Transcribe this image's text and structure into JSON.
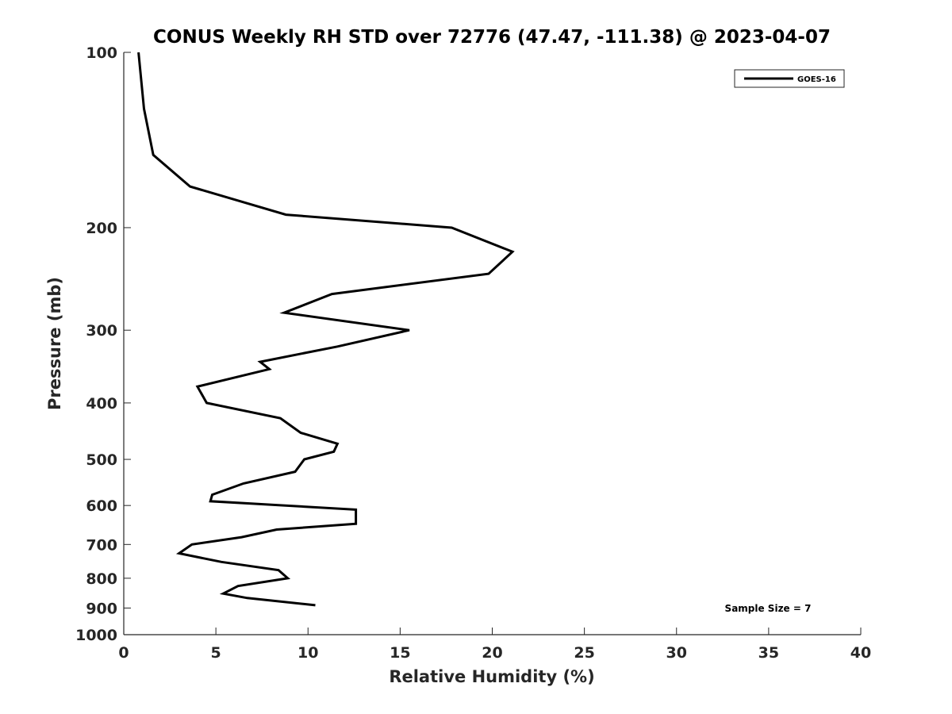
{
  "chart_data": {
    "type": "line",
    "title": "CONUS Weekly RH STD over 72776 (47.47, -111.38) @ 2023-04-07",
    "xlabel": "Relative Humidity (%)",
    "ylabel": "Pressure (mb)",
    "xlim": [
      0,
      40
    ],
    "ylim": [
      100,
      1000
    ],
    "yscale": "log",
    "y_reversed": true,
    "xticks": [
      0,
      5,
      10,
      15,
      20,
      25,
      30,
      35,
      40
    ],
    "xtick_labels": [
      "0",
      "5",
      "10",
      "15",
      "20",
      "25",
      "30",
      "35",
      "40"
    ],
    "yticks": [
      100,
      200,
      300,
      400,
      500,
      600,
      700,
      800,
      900,
      1000
    ],
    "ytick_labels": [
      "100",
      "200",
      "300",
      "400",
      "500",
      "600",
      "700",
      "800",
      "900",
      "1000"
    ],
    "grid": false,
    "legend_position": "top-right",
    "series": [
      {
        "name": "GOES-16",
        "color": "#000000",
        "x": [
          0.8,
          1.1,
          1.6,
          3.6,
          8.8,
          17.8,
          21.1,
          19.8,
          11.3,
          8.7,
          15.5,
          11.6,
          7.4,
          7.9,
          4.0,
          4.5,
          8.5,
          9.6,
          11.6,
          11.4,
          9.8,
          9.3,
          6.5,
          4.8,
          4.7,
          12.6,
          12.6,
          8.3,
          6.4,
          3.7,
          3.0,
          5.3,
          8.4,
          8.9,
          6.2,
          5.4,
          6.7,
          10.4
        ],
        "y": [
          100,
          125,
          150,
          170,
          190,
          200,
          220,
          240,
          260,
          280,
          300,
          320,
          340,
          350,
          375,
          400,
          425,
          450,
          470,
          485,
          500,
          525,
          550,
          575,
          590,
          610,
          645,
          660,
          680,
          700,
          725,
          750,
          775,
          800,
          825,
          850,
          865,
          890
        ]
      }
    ],
    "annotations": [
      "Sample Size = 7"
    ]
  }
}
